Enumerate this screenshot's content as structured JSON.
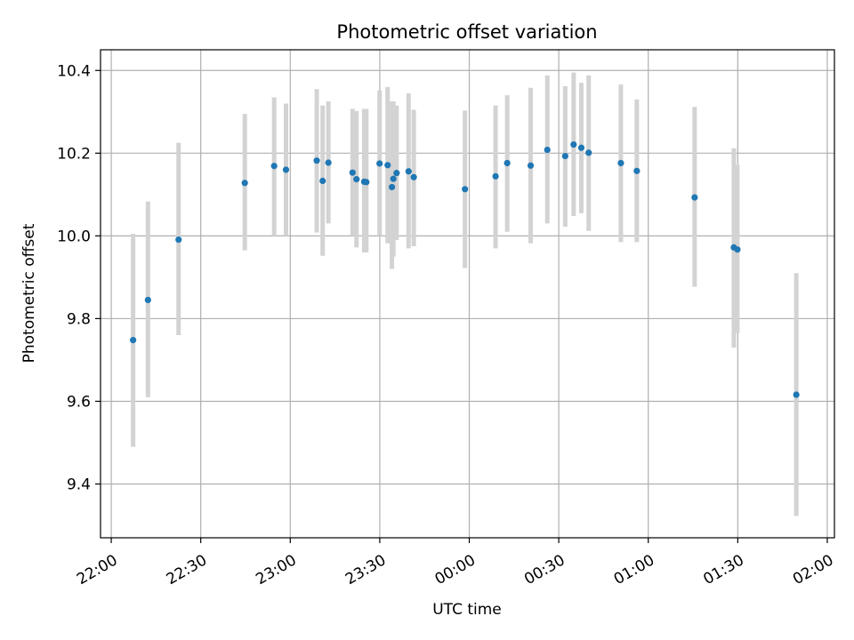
{
  "chart_data": {
    "type": "scatter",
    "title": "Photometric offset variation",
    "xlabel": "UTC time",
    "ylabel": "Photometric offset",
    "x_unit": "minutes after 22:00 UTC",
    "xlim": [
      -6,
      404
    ],
    "ylim": [
      9.27,
      10.45
    ],
    "grid": true,
    "x_ticks": [
      {
        "value": 0,
        "label": "22:00"
      },
      {
        "value": 50,
        "label": "22:30"
      },
      {
        "value": 100,
        "label": "23:00"
      },
      {
        "value": 150,
        "label": "23:30"
      },
      {
        "value": 200,
        "label": "00:00"
      },
      {
        "value": 250,
        "label": "00:30"
      },
      {
        "value": 300,
        "label": "01:00"
      },
      {
        "value": 350,
        "label": "01:30"
      },
      {
        "value": 400,
        "label": "02:00"
      }
    ],
    "y_ticks": [
      {
        "value": 9.4,
        "label": "9.4"
      },
      {
        "value": 9.6,
        "label": "9.6"
      },
      {
        "value": 9.8,
        "label": "9.8"
      },
      {
        "value": 10.0,
        "label": "10.0"
      },
      {
        "value": 10.2,
        "label": "10.2"
      },
      {
        "value": 10.4,
        "label": "10.4"
      }
    ],
    "colors": {
      "point": "#1f77b4",
      "errorbar": "#d3d3d3",
      "grid": "#b0b0b0"
    },
    "points": [
      {
        "x": 12.2,
        "y": 9.748,
        "lo": 9.49,
        "hi": 10.005
      },
      {
        "x": 20.5,
        "y": 9.845,
        "lo": 9.61,
        "hi": 10.083
      },
      {
        "x": 37.6,
        "y": 9.991,
        "lo": 9.76,
        "hi": 10.225
      },
      {
        "x": 74.6,
        "y": 10.128,
        "lo": 9.965,
        "hi": 10.295
      },
      {
        "x": 91.0,
        "y": 10.169,
        "lo": 10.0,
        "hi": 10.335
      },
      {
        "x": 97.6,
        "y": 10.16,
        "lo": 10.0,
        "hi": 10.32
      },
      {
        "x": 114.8,
        "y": 10.182,
        "lo": 10.008,
        "hi": 10.355
      },
      {
        "x": 118.1,
        "y": 10.133,
        "lo": 9.952,
        "hi": 10.315
      },
      {
        "x": 121.3,
        "y": 10.177,
        "lo": 10.03,
        "hi": 10.325
      },
      {
        "x": 134.8,
        "y": 10.153,
        "lo": 10.0,
        "hi": 10.307
      },
      {
        "x": 137.0,
        "y": 10.137,
        "lo": 9.972,
        "hi": 10.302
      },
      {
        "x": 141.3,
        "y": 10.131,
        "lo": 9.96,
        "hi": 10.307
      },
      {
        "x": 142.5,
        "y": 10.13,
        "lo": 9.96,
        "hi": 10.307
      },
      {
        "x": 149.9,
        "y": 10.175,
        "lo": 10.0,
        "hi": 10.352
      },
      {
        "x": 154.4,
        "y": 10.171,
        "lo": 9.982,
        "hi": 10.36
      },
      {
        "x": 156.8,
        "y": 10.118,
        "lo": 9.92,
        "hi": 10.325
      },
      {
        "x": 157.6,
        "y": 10.138,
        "lo": 9.95,
        "hi": 10.325
      },
      {
        "x": 159.4,
        "y": 10.152,
        "lo": 9.99,
        "hi": 10.315
      },
      {
        "x": 166.1,
        "y": 10.156,
        "lo": 9.97,
        "hi": 10.345
      },
      {
        "x": 169.0,
        "y": 10.142,
        "lo": 9.975,
        "hi": 10.305
      },
      {
        "x": 197.6,
        "y": 10.113,
        "lo": 9.922,
        "hi": 10.303
      },
      {
        "x": 214.7,
        "y": 10.144,
        "lo": 9.97,
        "hi": 10.315
      },
      {
        "x": 221.2,
        "y": 10.176,
        "lo": 10.01,
        "hi": 10.34
      },
      {
        "x": 234.3,
        "y": 10.17,
        "lo": 9.982,
        "hi": 10.358
      },
      {
        "x": 243.6,
        "y": 10.208,
        "lo": 10.03,
        "hi": 10.388
      },
      {
        "x": 253.6,
        "y": 10.193,
        "lo": 10.022,
        "hi": 10.362
      },
      {
        "x": 258.3,
        "y": 10.221,
        "lo": 10.048,
        "hi": 10.395
      },
      {
        "x": 262.6,
        "y": 10.213,
        "lo": 10.055,
        "hi": 10.37
      },
      {
        "x": 266.7,
        "y": 10.201,
        "lo": 10.012,
        "hi": 10.388
      },
      {
        "x": 284.7,
        "y": 10.176,
        "lo": 9.985,
        "hi": 10.366
      },
      {
        "x": 293.6,
        "y": 10.157,
        "lo": 9.985,
        "hi": 10.33
      },
      {
        "x": 325.9,
        "y": 10.093,
        "lo": 9.877,
        "hi": 10.312
      },
      {
        "x": 347.8,
        "y": 9.972,
        "lo": 9.73,
        "hi": 10.212
      },
      {
        "x": 349.8,
        "y": 9.967,
        "lo": 9.765,
        "hi": 10.172
      },
      {
        "x": 382.7,
        "y": 9.616,
        "lo": 9.323,
        "hi": 9.91
      }
    ]
  }
}
